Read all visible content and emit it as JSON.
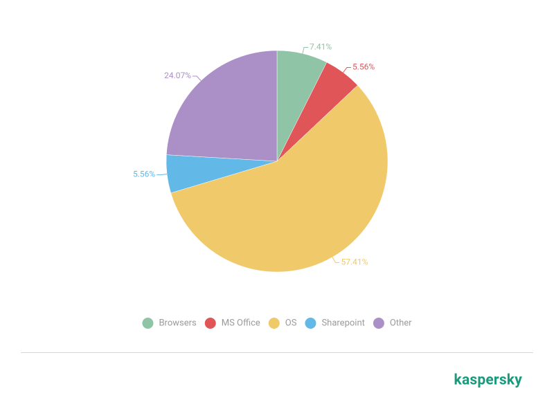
{
  "chart_data": {
    "type": "pie",
    "categories": [
      "Browsers",
      "MS Office",
      "OS",
      "Sharepoint",
      "Other"
    ],
    "values": [
      7.41,
      5.56,
      57.41,
      5.56,
      24.07
    ],
    "value_labels": [
      "7.41%",
      "5.56%",
      "57.41%",
      "5.56%",
      "24.07%"
    ],
    "colors": [
      "#8fc4a6",
      "#e05658",
      "#efc96a",
      "#62b8e6",
      "#ab8fc7"
    ],
    "legend": "bottom"
  },
  "brand": "kaspersky"
}
